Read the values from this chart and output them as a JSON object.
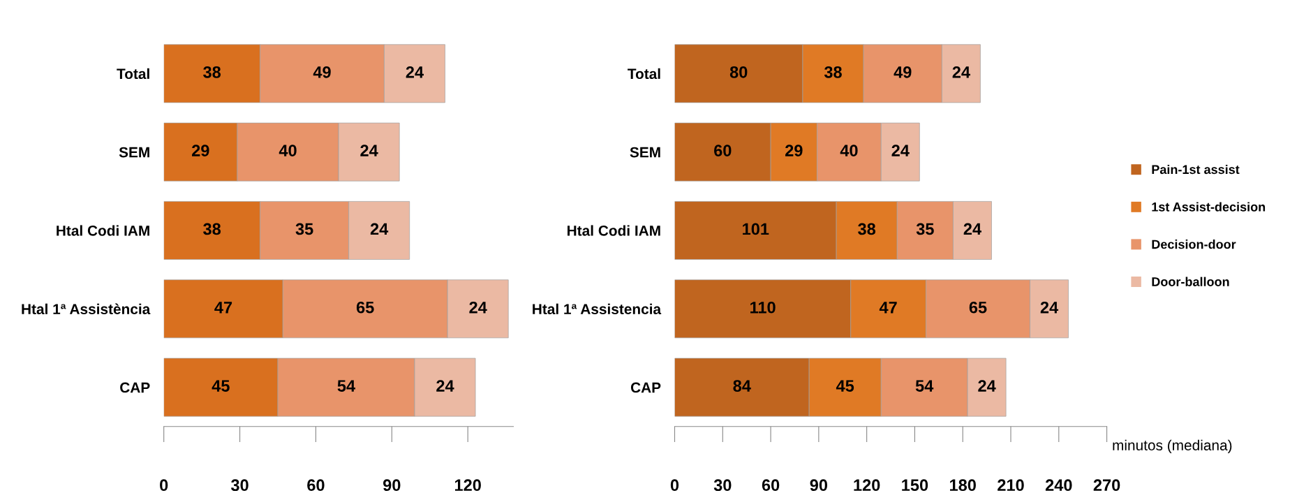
{
  "chart_data": [
    {
      "type": "bar",
      "orientation": "horizontal",
      "stacked": true,
      "data_labels": true,
      "grid": false,
      "legend": false,
      "categories": [
        "Total",
        "SEM",
        "Htal Codi IAM",
        "Htal 1ª Assistència",
        "CAP"
      ],
      "xlim": [
        0,
        138
      ],
      "xticks": [
        0,
        30,
        60,
        90,
        120
      ],
      "series": [
        {
          "color": "#d9701f",
          "values": [
            38,
            29,
            38,
            47,
            45
          ]
        },
        {
          "color": "#e8946a",
          "values": [
            49,
            40,
            35,
            65,
            54
          ]
        },
        {
          "color": "#ebb9a3",
          "values": [
            24,
            24,
            24,
            24,
            24
          ]
        }
      ]
    },
    {
      "type": "bar",
      "orientation": "horizontal",
      "stacked": true,
      "data_labels": true,
      "grid": false,
      "legend": "right",
      "categories": [
        "Total",
        "SEM",
        "Htal Codi IAM",
        "Htal 1ª Assistencia",
        "CAP"
      ],
      "xlim": [
        0,
        270
      ],
      "xticks": [
        0,
        30,
        60,
        90,
        120,
        150,
        180,
        210,
        240,
        270
      ],
      "annotations": [
        "minutos (mediana)"
      ],
      "series": [
        {
          "name": "Pain-1st assist",
          "color": "#c0651f",
          "values": [
            80,
            60,
            101,
            110,
            84
          ]
        },
        {
          "name": "1st Assist-decision",
          "color": "#e07a25",
          "values": [
            38,
            29,
            38,
            47,
            45
          ]
        },
        {
          "name": "Decision-door",
          "color": "#e8946a",
          "values": [
            49,
            40,
            35,
            65,
            54
          ]
        },
        {
          "name": "Door-balloon",
          "color": "#ebb9a3",
          "values": [
            24,
            24,
            24,
            24,
            24
          ]
        }
      ]
    }
  ]
}
